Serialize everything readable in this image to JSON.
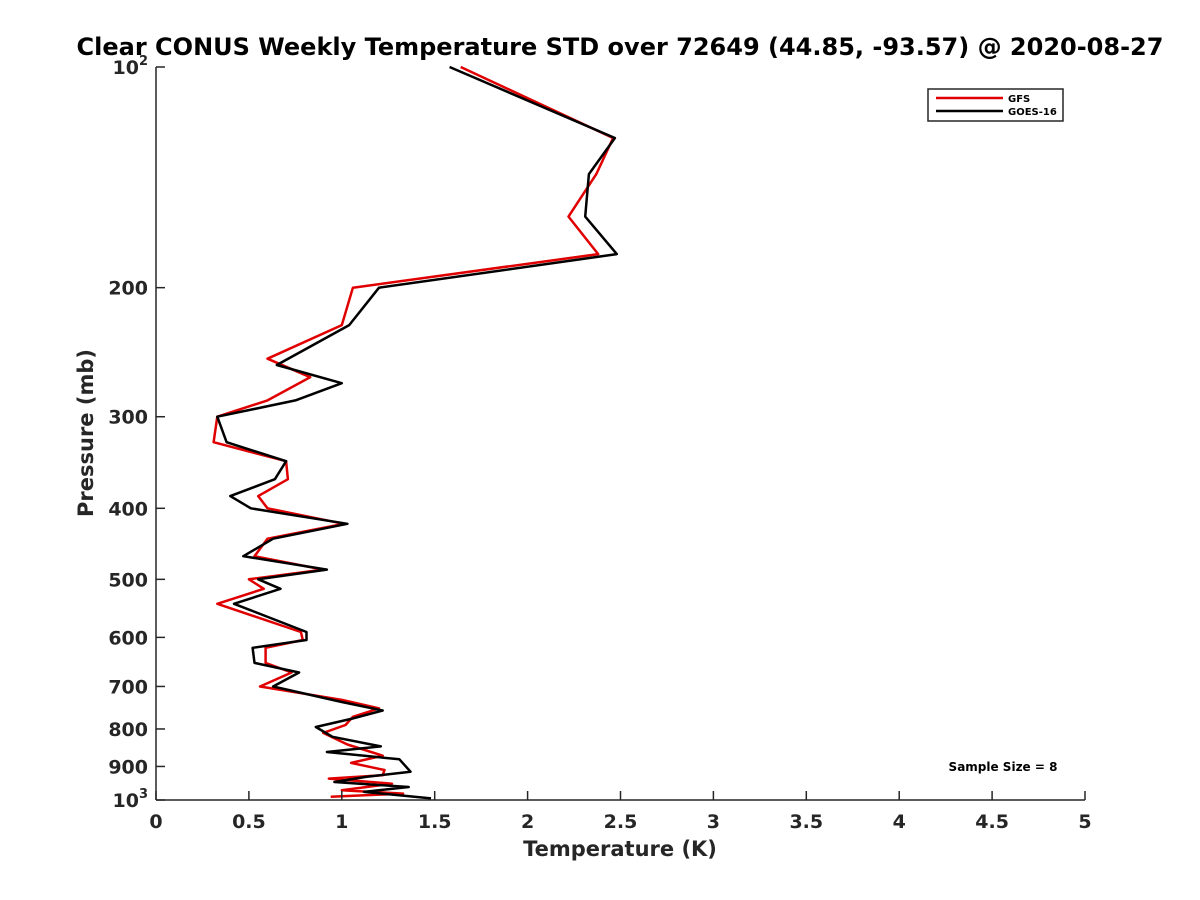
{
  "chart_data": {
    "type": "line",
    "title": "Clear CONUS Weekly Temperature STD over 72649 (44.85, -93.57) @ 2020-08-27",
    "xlabel": "Temperature (K)",
    "ylabel": "Pressure (mb)",
    "xlim": [
      0,
      5
    ],
    "ylim": [
      100,
      1000
    ],
    "yscale": "log",
    "yreversed": true,
    "grid": false,
    "legend_position": "top-right",
    "x_ticks": [
      0,
      0.5,
      1,
      1.5,
      2,
      2.5,
      3,
      3.5,
      4,
      4.5,
      5
    ],
    "x_tick_labels": [
      "0",
      "0.5",
      "1",
      "1.5",
      "2",
      "2.5",
      "3",
      "3.5",
      "4",
      "4.5",
      "5"
    ],
    "y_ticks": [
      100,
      200,
      300,
      400,
      500,
      600,
      700,
      800,
      900,
      1000
    ],
    "y_tick_labels": [
      "10²",
      "200",
      "300",
      "400",
      "500",
      "600",
      "700",
      "800",
      "900",
      "10³"
    ],
    "annotation": "Sample Size = 8",
    "series": [
      {
        "name": "GFS",
        "color": "#e00000",
        "points": [
          [
            1.64,
            100
          ],
          [
            2.46,
            125
          ],
          [
            2.37,
            140
          ],
          [
            2.22,
            160
          ],
          [
            2.38,
            180
          ],
          [
            1.06,
            200
          ],
          [
            1.0,
            225
          ],
          [
            0.6,
            250
          ],
          [
            0.83,
            265
          ],
          [
            0.6,
            285
          ],
          [
            0.33,
            300
          ],
          [
            0.31,
            325
          ],
          [
            0.7,
            345
          ],
          [
            0.71,
            365
          ],
          [
            0.55,
            385
          ],
          [
            0.6,
            400
          ],
          [
            1.01,
            420
          ],
          [
            0.6,
            440
          ],
          [
            0.53,
            465
          ],
          [
            0.9,
            485
          ],
          [
            0.5,
            500
          ],
          [
            0.58,
            515
          ],
          [
            0.33,
            540
          ],
          [
            0.78,
            590
          ],
          [
            0.79,
            605
          ],
          [
            0.59,
            620
          ],
          [
            0.59,
            650
          ],
          [
            0.73,
            670
          ],
          [
            0.56,
            700
          ],
          [
            1.0,
            730
          ],
          [
            1.2,
            750
          ],
          [
            1.06,
            770
          ],
          [
            1.02,
            790
          ],
          [
            0.9,
            810
          ],
          [
            1.03,
            840
          ],
          [
            1.22,
            870
          ],
          [
            1.05,
            890
          ],
          [
            1.23,
            910
          ],
          [
            1.22,
            925
          ],
          [
            0.93,
            935
          ],
          [
            1.27,
            950
          ],
          [
            1.0,
            970
          ],
          [
            1.33,
            980
          ],
          [
            0.94,
            990
          ]
        ]
      },
      {
        "name": "GOES-16",
        "color": "#000000",
        "points": [
          [
            1.58,
            100
          ],
          [
            2.47,
            125
          ],
          [
            2.33,
            140
          ],
          [
            2.31,
            160
          ],
          [
            2.48,
            180
          ],
          [
            1.2,
            200
          ],
          [
            1.04,
            225
          ],
          [
            0.65,
            255
          ],
          [
            1.0,
            270
          ],
          [
            0.75,
            285
          ],
          [
            0.33,
            300
          ],
          [
            0.38,
            325
          ],
          [
            0.7,
            345
          ],
          [
            0.64,
            365
          ],
          [
            0.4,
            385
          ],
          [
            0.51,
            400
          ],
          [
            1.03,
            420
          ],
          [
            0.63,
            440
          ],
          [
            0.47,
            465
          ],
          [
            0.92,
            485
          ],
          [
            0.55,
            500
          ],
          [
            0.67,
            515
          ],
          [
            0.42,
            540
          ],
          [
            0.81,
            590
          ],
          [
            0.81,
            605
          ],
          [
            0.52,
            620
          ],
          [
            0.53,
            650
          ],
          [
            0.77,
            670
          ],
          [
            0.63,
            700
          ],
          [
            1.0,
            735
          ],
          [
            1.22,
            755
          ],
          [
            1.05,
            775
          ],
          [
            0.86,
            795
          ],
          [
            0.95,
            820
          ],
          [
            1.21,
            845
          ],
          [
            0.92,
            860
          ],
          [
            1.31,
            880
          ],
          [
            1.37,
            915
          ],
          [
            1.13,
            930
          ],
          [
            0.96,
            945
          ],
          [
            1.36,
            960
          ],
          [
            1.12,
            975
          ],
          [
            1.48,
            995
          ]
        ]
      }
    ]
  }
}
